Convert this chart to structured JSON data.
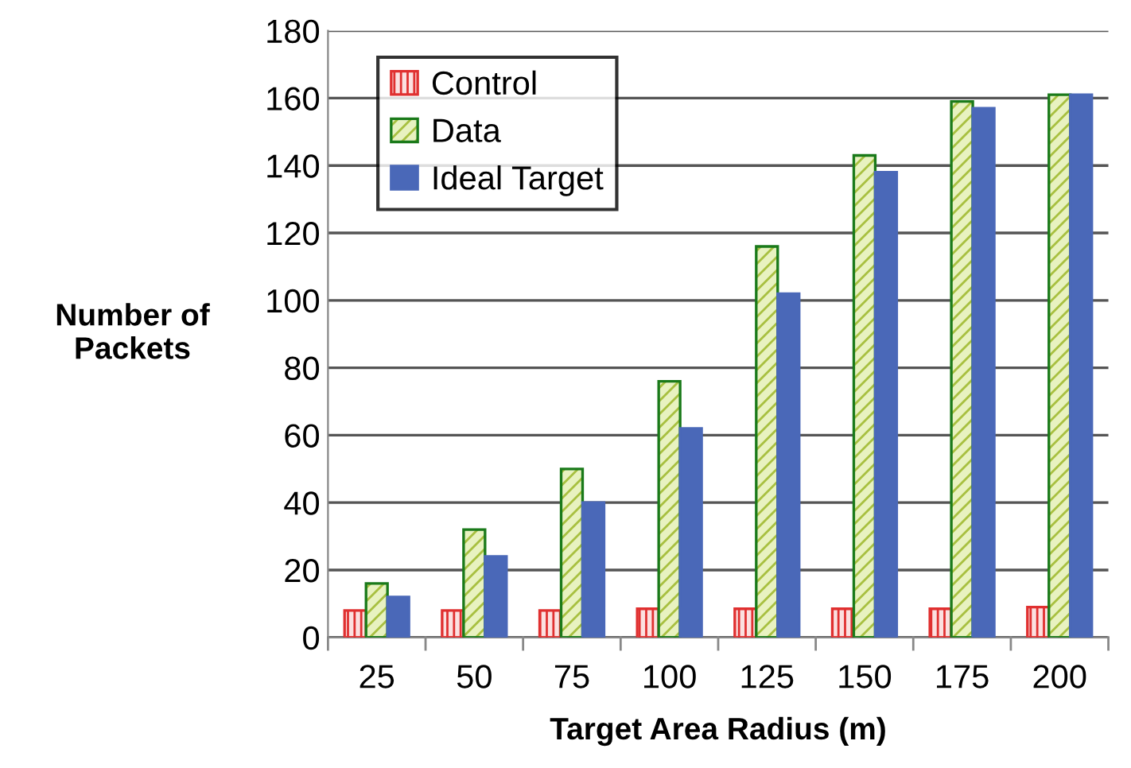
{
  "chart_data": {
    "type": "bar",
    "xlabel": "Target Area Radius (m)",
    "ylabel": "Number of\nPackets",
    "categories": [
      "25",
      "50",
      "75",
      "100",
      "125",
      "150",
      "175",
      "200"
    ],
    "series": [
      {
        "name": "Control",
        "color": "#e03030",
        "values": [
          8,
          8,
          8,
          8.5,
          8.5,
          8.5,
          8.5,
          9
        ]
      },
      {
        "name": "Data",
        "color": "#1a7a1a",
        "values": [
          16,
          32,
          50,
          76,
          116,
          143,
          159,
          161
        ]
      },
      {
        "name": "Ideal Target",
        "color": "#4a68b8",
        "values": [
          12,
          24,
          40,
          62,
          102,
          138,
          157,
          161
        ]
      }
    ],
    "ylim": [
      0,
      180
    ],
    "yticks": [
      0,
      20,
      40,
      60,
      80,
      100,
      120,
      140,
      160,
      180
    ],
    "grid": "y",
    "legend": "top left"
  }
}
